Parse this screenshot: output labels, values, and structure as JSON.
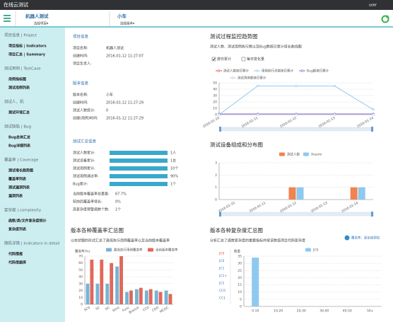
{
  "header": {
    "title": "在线云测试",
    "user": "user"
  },
  "project_bar": {
    "project": "机器人测试",
    "project_select": "选择项目▾",
    "version": "小车",
    "version_select": "选择版本▾"
  },
  "sidebar": [
    {
      "title": "项目信息 | Project",
      "items": [
        "项目指标 | Indicators",
        "项目汇总 | Summary"
      ]
    },
    {
      "title": "测试用例 | TestCase",
      "items": [
        "用例指标图",
        "测试用例列表"
      ]
    },
    {
      "title": "测试人、机",
      "items": [
        "测试环境汇总"
      ]
    },
    {
      "title": "测试缺陷 | Bug",
      "items": [
        "Bug总体汇总",
        "Bug详细列表"
      ]
    },
    {
      "title": "覆盖率 | Coverage",
      "items": [
        "测试增长趋势图",
        "覆盖率列表",
        "测试漏洞列表",
        "漏洞列表"
      ]
    },
    {
      "title": "复杂度 | complexity",
      "items": [
        "函数/类/文件复杂度统计",
        "复杂度列表"
      ]
    },
    {
      "title": "随机详情 | Indicators in detail",
      "items": [
        "代码情报",
        "代码借据库"
      ]
    }
  ],
  "project_info": {
    "title": "项目信息",
    "rows": [
      [
        "项目名称:",
        "机器人测试"
      ],
      [
        "创建时间:",
        "2016-01-12 11:27:07"
      ],
      [
        "项目负责人:"
      ]
    ]
  },
  "version_info": {
    "title": "版本信息",
    "rows": [
      [
        "版本名称:",
        "小车"
      ],
      [
        "创建时间:",
        "2016-01-12 11:27:29"
      ],
      [
        "测试人数统计:",
        "0"
      ],
      [
        "创建(用例)时间:",
        "2016-01-12 11:27:29"
      ]
    ]
  },
  "summary": {
    "title": "测试汇总信息",
    "bar_rows": [
      [
        "测试人数累计:",
        "1人"
      ],
      [
        "测试设备累计:",
        "1台"
      ],
      [
        "测试用例累计:",
        "10个"
      ],
      [
        "测试用例通过率:",
        "90%"
      ],
      [
        "Bug累计:",
        "1个"
      ]
    ],
    "text_rows": [
      [
        "当前版本覆盖率总量差:",
        "67.7%"
      ],
      [
        "较前后覆盖率增长:",
        "0%"
      ],
      [
        "高复杂度预警函数个数:",
        "1个"
      ]
    ]
  },
  "chart_data": [
    {
      "type": "line",
      "title": "测试过程监控趋势图",
      "subtitle": "测试人数、测试用例执行数以及Bug数按日累计增长曲线图",
      "toggles": [
        "按日累计",
        "每日变化量"
      ],
      "categories": [
        "2016-01-10",
        "2016-01-11",
        "2016-01-12",
        "2016-01-13",
        "2016-01-14"
      ],
      "series": [
        {
          "name": "测试人数按日累计",
          "color": "#e8514f",
          "values": [
            1,
            1,
            1,
            1,
            1
          ]
        },
        {
          "name": "用例执行次数按日累计",
          "color": "#8fcaf0",
          "values": [
            0,
            45,
            45,
            45,
            8
          ]
        },
        {
          "name": "Bug数按日累计",
          "color": "#8e6ad8",
          "values": [
            1,
            1,
            1,
            1,
            1
          ]
        },
        {
          "name": "测试用例数按日累计",
          "color": "#b7cde8",
          "values": [
            0,
            0,
            0,
            0,
            0
          ]
        }
      ],
      "ylim": [
        0,
        50
      ],
      "yticks": [
        0,
        10,
        20,
        30,
        40,
        50
      ],
      "grid": true
    },
    {
      "type": "bar",
      "title": "测试设备组成和分布图",
      "categories": [
        "2016-01-10",
        "2016-01-11",
        "2016-01-12",
        "2016-01-13",
        "2016-01-14"
      ],
      "series": [
        {
          "name": "测试人数",
          "color": "#f0834f",
          "values": [
            0,
            0,
            1,
            0,
            1
          ]
        },
        {
          "name": "Xiaomi",
          "color": "#8ec9ef",
          "values": [
            0,
            0,
            1,
            0,
            1
          ]
        }
      ],
      "ylim": [
        0,
        3
      ],
      "yticks": [
        0,
        1,
        2,
        3
      ],
      "grid": true
    },
    {
      "type": "bar",
      "title": "版本各种覆盖率汇总图",
      "subtitle": "以柱状图的形式汇总了最低执行用例覆盖率以及当前版本覆盖率",
      "y_label": "覆盖率(%)",
      "categories": [
        "SC0",
        "SC",
        "DC",
        "Stmt",
        "Func",
        "Branch",
        "CC0",
        "CDD",
        "MCDC"
      ],
      "series": [
        {
          "name": "最低执行用例覆盖率",
          "color": "#76b3d6",
          "values": [
            30,
            30,
            30,
            55,
            18,
            22,
            20,
            20,
            20
          ]
        },
        {
          "name": "当前版本覆盖率",
          "color": "#e0685a",
          "values": [
            65,
            65,
            60,
            70,
            20,
            24,
            22,
            18,
            15
          ]
        }
      ],
      "ylim": [
        0,
        70
      ],
      "yticks": [
        0,
        10,
        20,
        30,
        40,
        50,
        60,
        70
      ],
      "grid": true
    },
    {
      "type": "bar",
      "title": "版本各种复杂度汇总图",
      "subtitle": "分析汇总了函数复杂度的重要指标并按该数值项目代码复杂度",
      "y_label": "数量",
      "help": "覆盖率、复杂度帮助",
      "metric_links": [
        "JC0",
        "JC0",
        "JC1",
        "JC1+",
        "JC2",
        "CC0",
        "CC1"
      ],
      "categories": [
        "0-10",
        "10-20",
        "20-30",
        "30-40",
        "40-50",
        "50+"
      ],
      "series": [
        {
          "name": "JC0",
          "color": "#8ec9ef",
          "values": [
            34,
            0,
            0,
            0,
            0,
            0
          ]
        }
      ],
      "ylim": [
        0,
        35
      ],
      "yticks": [
        0,
        5,
        10,
        15,
        20,
        25,
        30,
        35
      ],
      "grid": true
    }
  ]
}
